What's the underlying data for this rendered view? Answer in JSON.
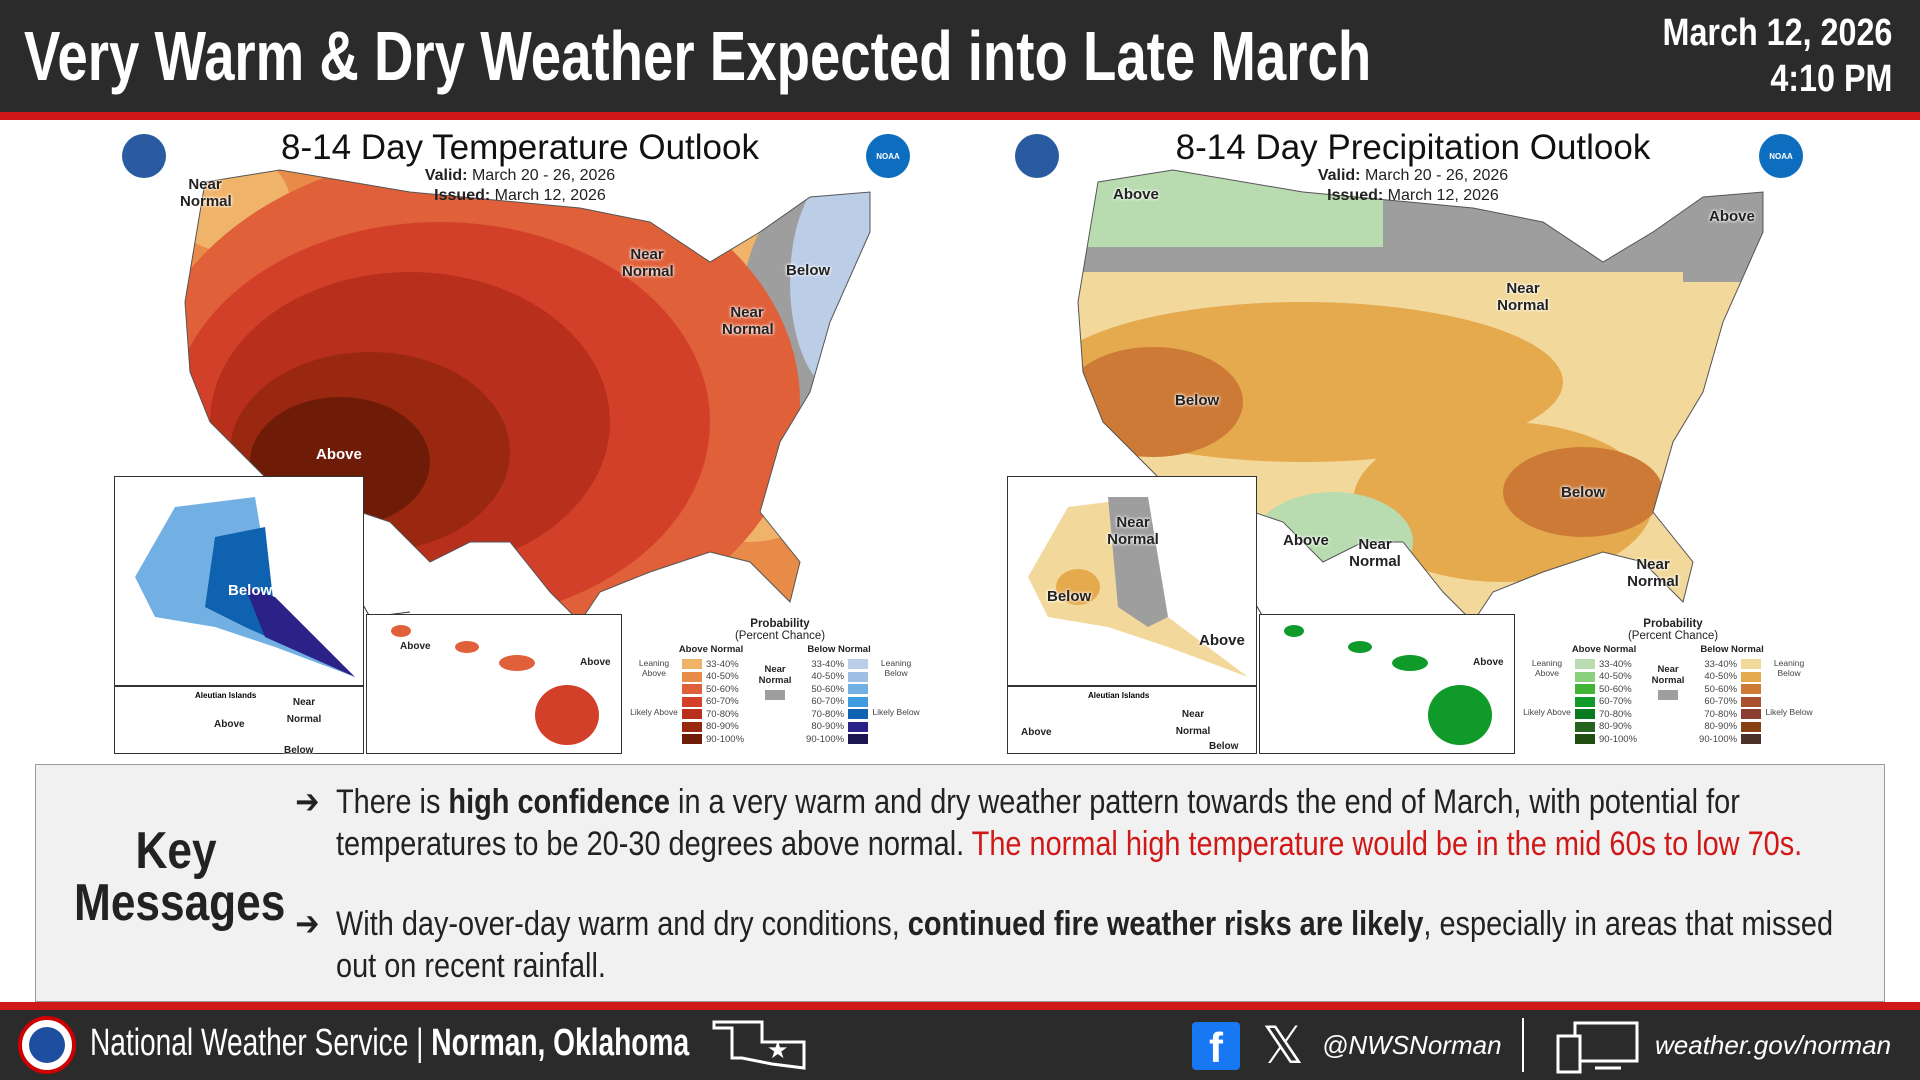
{
  "header": {
    "title": "Very Warm & Dry Weather Expected into Late March",
    "date": "March 12, 2026",
    "time": "4:10 PM"
  },
  "temp": {
    "title": "8-14 Day Temperature Outlook",
    "valid_label": "Valid:",
    "valid": "March 20 - 26, 2026",
    "issued_label": "Issued:",
    "issued": "March 12, 2026",
    "labels": [
      "Near Normal",
      "Near Normal",
      "Below",
      "Near Normal",
      "Above",
      "Below",
      "Above",
      "Above",
      "Above",
      "Near Normal",
      "Below"
    ],
    "aleutian": "Aleutian Islands",
    "legend": {
      "title": "Probability",
      "subtitle": "(Percent Chance)",
      "above": "Above Normal",
      "below": "Below Normal",
      "near": "Near Normal",
      "lean_above": "Leaning Above",
      "likely_above": "Likely Above",
      "lean_below": "Leaning Below",
      "likely_below": "Likely Below",
      "ranges": [
        "33-40%",
        "40-50%",
        "50-60%",
        "60-70%",
        "70-80%",
        "80-90%",
        "90-100%"
      ],
      "above_colors": [
        "#f0b36a",
        "#e88a48",
        "#e0603a",
        "#d2402a",
        "#b8301c",
        "#9a2810",
        "#6e1c08"
      ],
      "below_colors": [
        "#bccde8",
        "#9fbee3",
        "#72b0e4",
        "#3f9ae0",
        "#0f62b0",
        "#2b2287",
        "#1c154f"
      ],
      "near_color": "#9e9e9e"
    }
  },
  "precip": {
    "title": "8-14 Day Precipitation Outlook",
    "valid_label": "Valid:",
    "valid": "March 20 - 26, 2026",
    "issued_label": "Issued:",
    "issued": "March 12, 2026",
    "labels": [
      "Above",
      "Above",
      "Near Normal",
      "Below",
      "Below",
      "Near Normal",
      "Above",
      "Near Normal",
      "Near Normal",
      "Below",
      "Above",
      "Above",
      "Above",
      "Near Normal",
      "Below"
    ],
    "aleutian": "Aleutian Islands",
    "legend": {
      "title": "Probability",
      "subtitle": "(Percent Chance)",
      "above": "Above Normal",
      "below": "Below Normal",
      "near": "Near Normal",
      "lean_above": "Leaning Above",
      "likely_above": "Likely Above",
      "lean_below": "Leaning Below",
      "likely_below": "Likely Below",
      "ranges": [
        "33-40%",
        "40-50%",
        "50-60%",
        "60-70%",
        "70-80%",
        "80-90%",
        "90-100%"
      ],
      "above_colors": [
        "#b8dcb0",
        "#8cd07e",
        "#42b334",
        "#0f9a2a",
        "#0a7a20",
        "#266320",
        "#1f4d10"
      ],
      "below_colors": [
        "#f3d89b",
        "#e5a94e",
        "#cc7a36",
        "#a85030",
        "#8a3e30",
        "#874010",
        "#4a3028"
      ],
      "near_color": "#9e9e9e"
    }
  },
  "key": {
    "title": "Key Messages",
    "arrow": "➔",
    "m1_a": "There is ",
    "m1_b": "high confidence",
    "m1_c": " in a very warm and dry weather pattern towards the end of March, with potential for temperatures to be 20-30 degrees above normal. ",
    "m1_d": "The normal high temperature would be in the mid 60s to low 70s.",
    "m2_a": "With day-over-day warm and dry conditions, ",
    "m2_b": "continued fire weather risks are likely",
    "m2_c": ", especially in areas that missed out on recent rainfall."
  },
  "footer": {
    "org": "National Weather Service | ",
    "office": "Norman, Oklahoma",
    "handle": "@NWSNorman",
    "website": "weather.gov/norman",
    "noaa": "NOAA"
  }
}
